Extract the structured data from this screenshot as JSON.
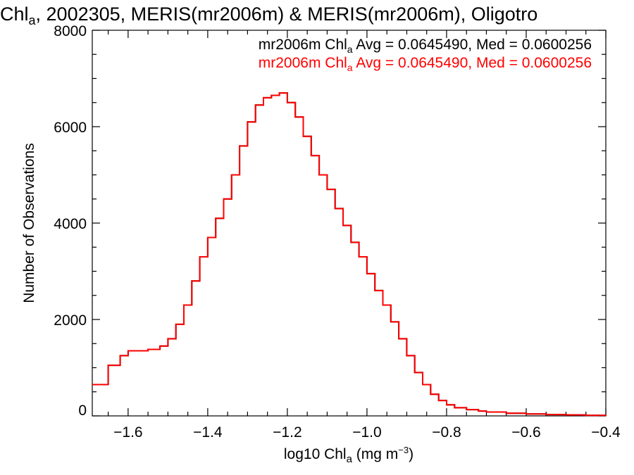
{
  "chart_data": {
    "type": "line",
    "step": true,
    "title": {
      "pre": "Chl",
      "sub": "a",
      "post": ", 2002305, MERIS(mr2006m) & MERIS(mr2006m), Oligotro"
    },
    "xlabel": {
      "pre": "log10 Chl",
      "sub": "a",
      "mid": " (mg m",
      "sup": "−3",
      "post": ")"
    },
    "ylabel": "Number of Observations",
    "xlim": [
      -1.69,
      -0.4
    ],
    "ylim": [
      0,
      8000
    ],
    "xticks": [
      -1.6,
      -1.4,
      -1.2,
      -1.0,
      -0.8,
      -0.6,
      -0.4
    ],
    "xtick_labels": [
      "−1.6",
      "−1.4",
      "−1.2",
      "−1.0",
      "−0.8",
      "−0.6",
      "−0.4"
    ],
    "yticks": [
      0,
      2000,
      4000,
      6000,
      8000
    ],
    "ytick_labels": [
      "0",
      "2000",
      "4000",
      "6000",
      "8000"
    ],
    "grid": false,
    "legend_position": "top-right",
    "colors": {
      "black_series": "#000000",
      "red_series": "#ff0000"
    },
    "series": [
      {
        "name": "mr2006m",
        "color": "#000000",
        "legend": {
          "pre": "mr2006m Chl",
          "sub": "a",
          "post": " Avg = 0.0645490, Med = 0.0600256"
        }
      },
      {
        "name": "mr2006m",
        "color": "#ff0000",
        "legend": {
          "pre": "mr2006m Chl",
          "sub": "a",
          "post": " Avg = 0.0645490, Med = 0.0600256"
        }
      }
    ],
    "x": [
      -1.69,
      -1.65,
      -1.62,
      -1.6,
      -1.55,
      -1.52,
      -1.5,
      -1.48,
      -1.46,
      -1.44,
      -1.42,
      -1.4,
      -1.38,
      -1.36,
      -1.34,
      -1.32,
      -1.3,
      -1.28,
      -1.26,
      -1.24,
      -1.22,
      -1.2,
      -1.18,
      -1.16,
      -1.14,
      -1.12,
      -1.1,
      -1.08,
      -1.06,
      -1.04,
      -1.02,
      -1.0,
      -0.98,
      -0.96,
      -0.94,
      -0.92,
      -0.9,
      -0.88,
      -0.86,
      -0.84,
      -0.82,
      -0.8,
      -0.78,
      -0.75,
      -0.72,
      -0.7,
      -0.65,
      -0.6,
      -0.55,
      -0.5,
      -0.45,
      -0.4
    ],
    "y": [
      650,
      1050,
      1250,
      1350,
      1380,
      1450,
      1600,
      1900,
      2300,
      2800,
      3300,
      3700,
      4100,
      4500,
      5000,
      5600,
      6100,
      6450,
      6600,
      6650,
      6700,
      6500,
      6200,
      5800,
      5400,
      5000,
      4700,
      4300,
      3950,
      3600,
      3300,
      2950,
      2600,
      2300,
      1950,
      1600,
      1250,
      900,
      650,
      450,
      320,
      230,
      170,
      130,
      100,
      80,
      55,
      40,
      28,
      20,
      12,
      8
    ]
  }
}
